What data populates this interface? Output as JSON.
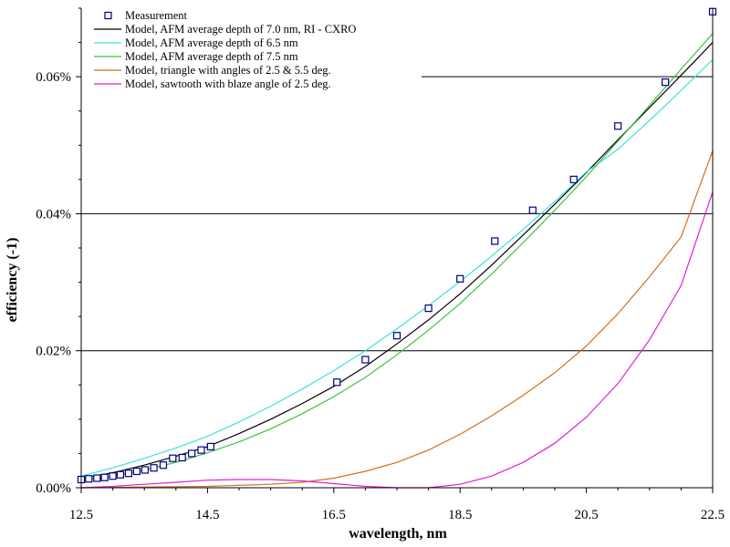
{
  "chart_data": {
    "type": "line",
    "title": "",
    "xlabel": "wavelength, nm",
    "ylabel": "efficiency (-1)",
    "xlim": [
      12.5,
      22.5
    ],
    "ylim": [
      0,
      0.07
    ],
    "x_ticks": [
      12.5,
      14.5,
      16.5,
      18.5,
      20.5,
      22.5
    ],
    "x_tick_labels": [
      "12.5",
      "14.5",
      "16.5",
      "18.5",
      "20.5",
      "22.5"
    ],
    "y_ticks": [
      0,
      0.02,
      0.04,
      0.06
    ],
    "y_tick_labels": [
      "0.00%",
      "0.02%",
      "0.04%",
      "0.06%"
    ],
    "grid": "horizontal lines at 0.02%, 0.04%, 0.06%",
    "legend_position": "top-left",
    "series": [
      {
        "name": "Measurement",
        "kind": "markers",
        "color": "#000080",
        "x": [
          12.5,
          12.62,
          12.75,
          12.87,
          13.0,
          13.12,
          13.25,
          13.38,
          13.51,
          13.65,
          13.8,
          13.95,
          14.1,
          14.25,
          14.4,
          14.55,
          16.55,
          17.0,
          17.5,
          18.0,
          18.5,
          19.05,
          19.65,
          20.3,
          21.0,
          21.75,
          22.5
        ],
        "y": [
          0.0012,
          0.0013,
          0.0014,
          0.0015,
          0.0017,
          0.0019,
          0.0021,
          0.0024,
          0.0026,
          0.0029,
          0.0033,
          0.0043,
          0.0044,
          0.005,
          0.0055,
          0.006,
          0.0154,
          0.0187,
          0.0222,
          0.0262,
          0.0305,
          0.036,
          0.0405,
          0.045,
          0.0528,
          0.0592,
          0.0695
        ]
      },
      {
        "name": "Model, AFM average depth of 7.0 nm, RI - CXRO",
        "color": "#000000",
        "x": [
          12.5,
          13.0,
          13.5,
          14.0,
          14.5,
          15.0,
          15.5,
          16.0,
          16.5,
          17.0,
          17.5,
          18.0,
          18.5,
          19.0,
          19.5,
          20.0,
          20.5,
          21.0,
          21.5,
          22.0,
          22.5
        ],
        "y": [
          0.0013,
          0.0022,
          0.0033,
          0.0046,
          0.006,
          0.0079,
          0.01,
          0.0123,
          0.0148,
          0.0177,
          0.021,
          0.0245,
          0.0283,
          0.0325,
          0.0369,
          0.0414,
          0.046,
          0.0508,
          0.0555,
          0.0602,
          0.065
        ]
      },
      {
        "name": "Model, AFM average depth of 6.5 nm",
        "color": "#40e0e0",
        "x": [
          12.5,
          13.0,
          13.5,
          14.0,
          14.5,
          15.0,
          15.5,
          16.0,
          16.5,
          17.0,
          17.5,
          18.0,
          18.5,
          19.0,
          19.5,
          20.0,
          20.5,
          21.0,
          21.5,
          22.0,
          22.5
        ],
        "y": [
          0.0017,
          0.0029,
          0.0043,
          0.0058,
          0.0075,
          0.0096,
          0.0119,
          0.0144,
          0.0171,
          0.02,
          0.0232,
          0.0266,
          0.0301,
          0.0338,
          0.0377,
          0.0418,
          0.0461,
          0.0494,
          0.0536,
          0.058,
          0.0625
        ]
      },
      {
        "name": "Model, AFM average depth of 7.5 nm",
        "color": "#40c040",
        "x": [
          12.5,
          13.0,
          13.5,
          14.0,
          14.5,
          15.0,
          15.5,
          16.0,
          16.5,
          17.0,
          17.5,
          18.0,
          18.5,
          19.0,
          19.5,
          20.0,
          20.5,
          21.0,
          21.5,
          22.0,
          22.5
        ],
        "y": [
          0.001,
          0.0017,
          0.0026,
          0.0037,
          0.0051,
          0.0067,
          0.0086,
          0.0108,
          0.0133,
          0.0161,
          0.0194,
          0.023,
          0.0269,
          0.0312,
          0.0358,
          0.0405,
          0.0454,
          0.0506,
          0.0558,
          0.0611,
          0.0663
        ]
      },
      {
        "name": "Model, triangle with angles of 2.5 & 5.5 deg.",
        "color": "#d07020",
        "x": [
          12.5,
          13.5,
          14.5,
          15.5,
          16.0,
          16.5,
          17.0,
          17.5,
          18.0,
          18.5,
          19.0,
          19.5,
          20.0,
          20.5,
          21.0,
          21.5,
          22.0,
          22.5
        ],
        "y": [
          0.0,
          0.0001,
          0.0002,
          0.0005,
          0.0008,
          0.0014,
          0.0024,
          0.0037,
          0.0055,
          0.0078,
          0.0105,
          0.0135,
          0.0168,
          0.0207,
          0.0254,
          0.0308,
          0.0366,
          0.0492
        ]
      },
      {
        "name": "Model, sawtooth with blaze angle of 2.5 deg.",
        "color": "#e020d0",
        "x": [
          12.5,
          13.0,
          13.5,
          14.0,
          14.5,
          15.0,
          15.5,
          16.0,
          16.5,
          17.0,
          17.5,
          18.0,
          18.5,
          19.0,
          19.5,
          20.0,
          20.5,
          21.0,
          21.5,
          22.0,
          22.5
        ],
        "y": [
          0.0,
          0.0002,
          0.0005,
          0.0008,
          0.0011,
          0.0012,
          0.0012,
          0.001,
          0.0006,
          0.0002,
          0.0,
          0.0,
          0.0005,
          0.0017,
          0.0037,
          0.0065,
          0.0103,
          0.0152,
          0.0216,
          0.0295,
          0.0432
        ]
      }
    ]
  }
}
